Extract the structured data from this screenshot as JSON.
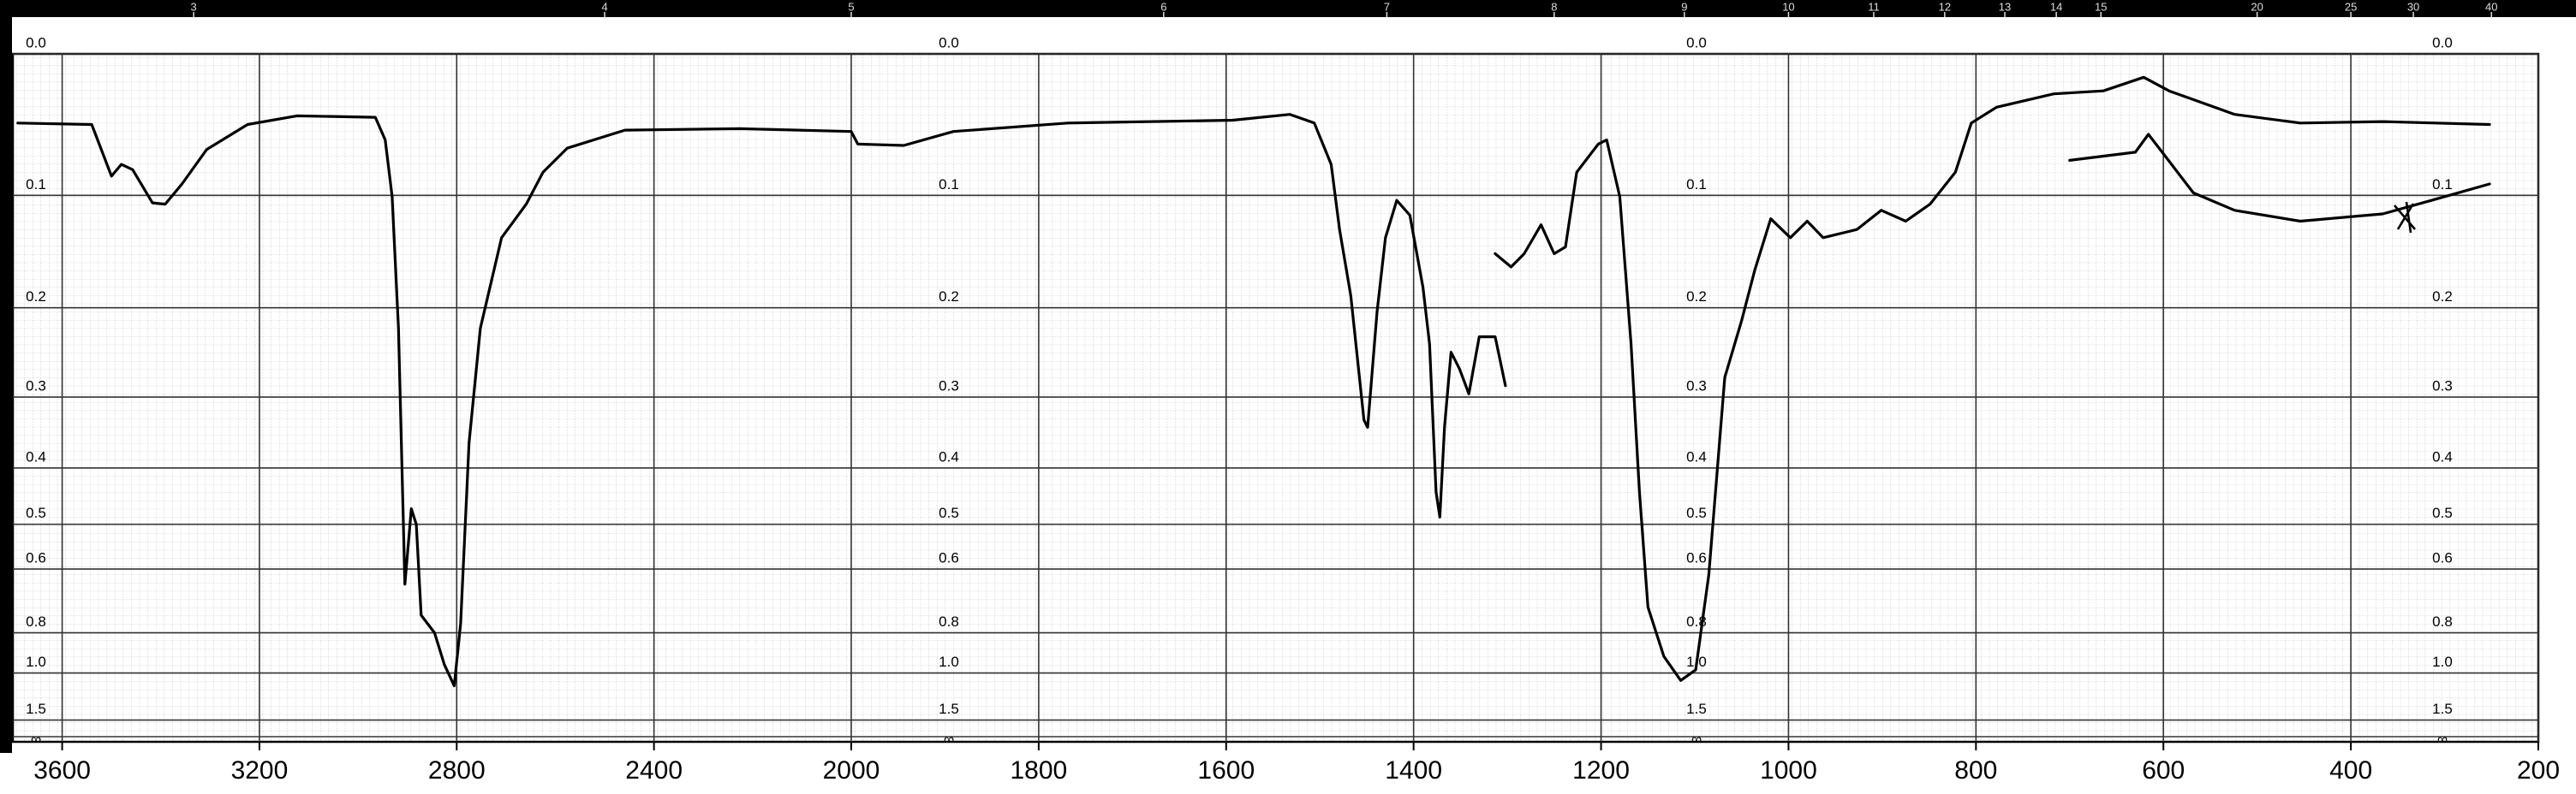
{
  "chart_data": {
    "type": "line",
    "yscale": "absorbance",
    "y_end_label": "∞",
    "xlim": [
      3700,
      200
    ],
    "x_scale_change_at": 2000,
    "xticks": [
      3600,
      3200,
      2800,
      2400,
      2000,
      1800,
      1600,
      1400,
      1200,
      1000,
      800,
      600,
      400,
      200
    ],
    "x2ticks": [
      3,
      4,
      5,
      6,
      7,
      8,
      9,
      10,
      11,
      12,
      13,
      14,
      15,
      20,
      25,
      30,
      40
    ],
    "yticks": [
      {
        "value": 0,
        "label": "0.0"
      },
      0.1,
      0.2,
      0.3,
      0.4,
      0.5,
      0.6,
      0.8,
      {
        "value": 1,
        "label": "1.0"
      },
      1.5
    ],
    "grid": true,
    "series": [
      {
        "color": "#000000",
        "x": [
          3690,
          3540,
          3500,
          3480,
          3457,
          3417,
          3391,
          3357,
          3307,
          3224,
          3124,
          2965,
          2945,
          2931,
          2918,
          2905,
          2892,
          2882,
          2872,
          2845,
          2825,
          2805,
          2792,
          2775,
          2752,
          2709,
          2659,
          2625,
          2576,
          2459,
          2226,
          2000,
          1993,
          1944,
          1891,
          1769,
          1593,
          1532,
          1506,
          1488,
          1479,
          1467,
          1453,
          1449,
          1439,
          1430,
          1418,
          1404,
          1390,
          1383,
          1376,
          1372,
          1367,
          1360,
          1351,
          1341,
          1330,
          1313,
          1302
        ],
        "values": [
          0.046,
          0.047,
          0.085,
          0.076,
          0.08,
          0.106,
          0.107,
          0.091,
          0.065,
          0.047,
          0.041,
          0.042,
          0.058,
          0.101,
          0.221,
          0.64,
          0.47,
          0.5,
          0.735,
          0.8,
          0.95,
          1.09,
          0.764,
          0.362,
          0.221,
          0.135,
          0.107,
          0.082,
          0.064,
          0.051,
          0.05,
          0.052,
          0.061,
          0.062,
          0.052,
          0.046,
          0.044,
          0.04,
          0.046,
          0.076,
          0.128,
          0.188,
          0.33,
          0.34,
          0.204,
          0.135,
          0.104,
          0.116,
          0.18,
          0.238,
          0.44,
          0.486,
          0.339,
          0.247,
          0.266,
          0.296,
          0.23,
          0.23,
          0.286
        ]
      },
      {
        "color": "#000000",
        "x": [
          1313,
          1296,
          1282,
          1264,
          1250,
          1238,
          1226,
          1203,
          1194,
          1180,
          1168,
          1159,
          1150,
          1133,
          1115,
          1099,
          1085,
          1068,
          1050,
          1036,
          1019,
          998,
          980,
          963,
          927,
          901,
          875,
          849,
          822,
          805,
          778,
          717,
          664,
          621,
          594,
          524,
          454,
          366,
          252
        ],
        "values": [
          0.149,
          0.161,
          0.149,
          0.124,
          0.149,
          0.143,
          0.082,
          0.061,
          0.058,
          0.101,
          0.238,
          0.44,
          0.708,
          0.906,
          1.05,
          0.98,
          0.614,
          0.276,
          0.213,
          0.164,
          0.119,
          0.135,
          0.121,
          0.135,
          0.128,
          0.112,
          0.121,
          0.107,
          0.082,
          0.046,
          0.035,
          0.026,
          0.024,
          0.015,
          0.024,
          0.04,
          0.046,
          0.045,
          0.047
        ]
      },
      {
        "color": "#000000",
        "x": [
          700,
          630,
          616,
          599,
          568,
          524,
          454,
          366,
          314,
          252
        ],
        "values": [
          0.073,
          0.067,
          0.054,
          0.069,
          0.098,
          0.112,
          0.121,
          0.115,
          0.104,
          0.091
        ]
      }
    ]
  }
}
